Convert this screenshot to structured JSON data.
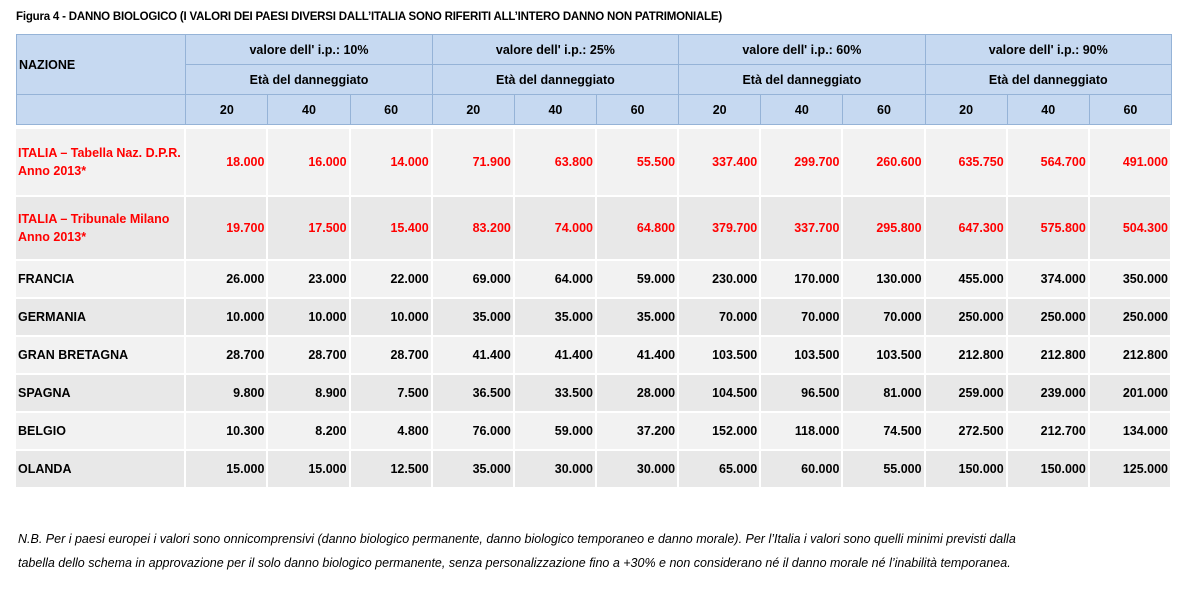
{
  "title": "Figura 4 - DANNO BIOLOGICO (I VALORI DEI PAESI DIVERSI DALL’ITALIA SONO RIFERITI ALL’INTERO DANNO NON PATRIMONIALE)",
  "table": {
    "nation_header": "NAZIONE",
    "groups": [
      {
        "label": "valore dell' i.p.: 10%",
        "sub": "Età del danneggiato",
        "ages": [
          "20",
          "40",
          "60"
        ]
      },
      {
        "label": "valore dell' i.p.: 25%",
        "sub": "Età del danneggiato",
        "ages": [
          "20",
          "40",
          "60"
        ]
      },
      {
        "label": "valore dell' i.p.: 60%",
        "sub": "Età del danneggiato",
        "ages": [
          "20",
          "40",
          "60"
        ]
      },
      {
        "label": "valore dell' i.p.: 90%",
        "sub": "Età del danneggiato",
        "ages": [
          "20",
          "40",
          "60"
        ]
      }
    ],
    "rows": [
      {
        "name_line1": "ITALIA – Tabella Naz. D.P.R.",
        "name_line2": "Anno 2013*",
        "values": [
          "18.000",
          "16.000",
          "14.000",
          "71.900",
          "63.800",
          "55.500",
          "337.400",
          "299.700",
          "260.600",
          "635.750",
          "564.700",
          "491.000"
        ]
      },
      {
        "name_line1": "ITALIA – Tribunale Milano",
        "name_line2": "Anno 2013*",
        "values": [
          "19.700",
          "17.500",
          "15.400",
          "83.200",
          "74.000",
          "64.800",
          "379.700",
          "337.700",
          "295.800",
          "647.300",
          "575.800",
          "504.300"
        ]
      },
      {
        "name_line1": "FRANCIA",
        "name_line2": "",
        "values": [
          "26.000",
          "23.000",
          "22.000",
          "69.000",
          "64.000",
          "59.000",
          "230.000",
          "170.000",
          "130.000",
          "455.000",
          "374.000",
          "350.000"
        ]
      },
      {
        "name_line1": "GERMANIA",
        "name_line2": "",
        "values": [
          "10.000",
          "10.000",
          "10.000",
          "35.000",
          "35.000",
          "35.000",
          "70.000",
          "70.000",
          "70.000",
          "250.000",
          "250.000",
          "250.000"
        ]
      },
      {
        "name_line1": "GRAN BRETAGNA",
        "name_line2": "",
        "values": [
          "28.700",
          "28.700",
          "28.700",
          "41.400",
          "41.400",
          "41.400",
          "103.500",
          "103.500",
          "103.500",
          "212.800",
          "212.800",
          "212.800"
        ]
      },
      {
        "name_line1": "SPAGNA",
        "name_line2": "",
        "values": [
          "9.800",
          "8.900",
          "7.500",
          "36.500",
          "33.500",
          "28.000",
          "104.500",
          "96.500",
          "81.000",
          "259.000",
          "239.000",
          "201.000"
        ]
      },
      {
        "name_line1": "BELGIO",
        "name_line2": "",
        "values": [
          "10.300",
          "8.200",
          "4.800",
          "76.000",
          "59.000",
          "37.200",
          "152.000",
          "118.000",
          "74.500",
          "272.500",
          "212.700",
          "134.000"
        ]
      },
      {
        "name_line1": "OLANDA",
        "name_line2": "",
        "values": [
          "15.000",
          "15.000",
          "12.500",
          "35.000",
          "30.000",
          "30.000",
          "65.000",
          "60.000",
          "55.000",
          "150.000",
          "150.000",
          "125.000"
        ]
      }
    ]
  },
  "note": {
    "line1": "N.B.  Per i paesi europei i valori sono onnicomprensivi (danno biologico permanente, danno biologico temporaneo e danno morale). Per l’Italia i valori sono quelli minimi  previsti dalla",
    "line2": "tabella dello schema in approvazione per il solo danno biologico permanente, senza personalizzazione fino a +30% e non considerano né il danno morale né l’inabilità temporanea."
  },
  "colors": {
    "header_bg": "#c6d9f1",
    "header_border": "#95b3d7",
    "italy_text": "#ff0000",
    "row_bg_a": "#f2f2f2",
    "row_bg_b": "#e8e8e8"
  }
}
